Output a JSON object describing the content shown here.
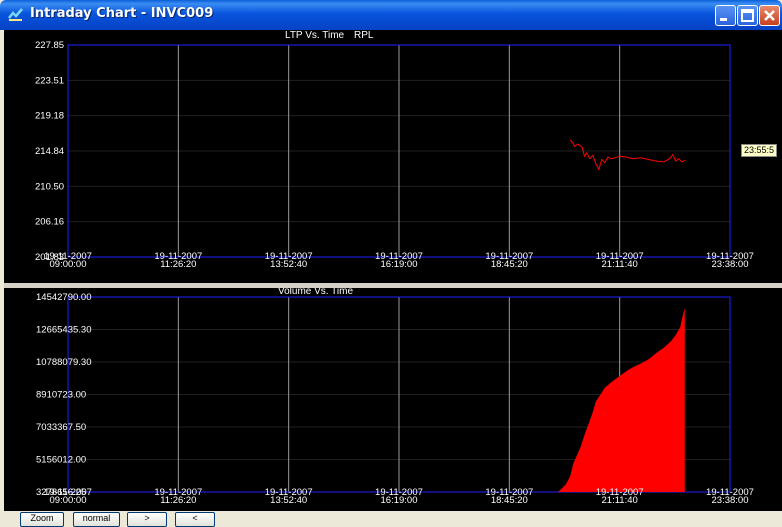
{
  "window": {
    "title": "Intraday Chart - INVC009",
    "buttons": [
      "minimize-icon",
      "maximize-icon",
      "close-icon"
    ]
  },
  "buttons": {
    "zoom": "Zoom",
    "normal": "normal",
    "next": ">",
    "prev": "<"
  },
  "cursor_time": "23:55:5",
  "chart_data": [
    {
      "type": "line",
      "title": "LTP Vs. Time",
      "symbol": "RPL",
      "color": "#ff0000",
      "yticks": [
        "227.85",
        "223.51",
        "219.18",
        "214.84",
        "210.50",
        "206.16",
        "201.83"
      ],
      "ylim": [
        201.83,
        227.85
      ],
      "xticks": [
        {
          "date": "19-11-2007",
          "time": "09:00:00"
        },
        {
          "date": "19-11-2007",
          "time": "11:26:20"
        },
        {
          "date": "19-11-2007",
          "time": "13:52:40"
        },
        {
          "date": "19-11-2007",
          "time": "16:19:00"
        },
        {
          "date": "19-11-2007",
          "time": "18:45:20"
        },
        {
          "date": "19-11-2007",
          "time": "21:11:40"
        },
        {
          "date": "19-11-2007",
          "time": "23:38:00"
        }
      ],
      "x": [
        "20:06",
        "20:09",
        "20:12",
        "20:16",
        "20:22",
        "20:25",
        "20:28",
        "20:32",
        "20:36",
        "20:40",
        "20:44",
        "20:48",
        "20:52",
        "20:56",
        "21:00",
        "21:05",
        "21:12",
        "21:20",
        "21:30",
        "21:40",
        "21:50",
        "22:00",
        "22:10",
        "22:18",
        "22:22",
        "22:26",
        "22:30",
        "22:34",
        "22:38"
      ],
      "values": [
        216.2,
        215.9,
        215.4,
        215.7,
        215.3,
        214.2,
        214.6,
        213.9,
        214.3,
        213.3,
        212.6,
        213.8,
        213.4,
        214.1,
        213.9,
        214.0,
        214.2,
        214.1,
        213.9,
        214.0,
        213.8,
        213.6,
        213.5,
        213.9,
        214.4,
        213.6,
        213.9,
        213.5,
        213.7
      ]
    },
    {
      "type": "area",
      "title": "Volume Vs. Time",
      "color": "#ff0000",
      "yticks": [
        "14542790.00",
        "12665435.30",
        "10788079.30",
        "8910723.00",
        "7033367.50",
        "5156012.00",
        "3278656.25"
      ],
      "ylim": [
        3278656.25,
        14542790.0
      ],
      "xticks": [
        {
          "date": "19-11-2007",
          "time": "09:00:00"
        },
        {
          "date": "19-11-2007",
          "time": "11:26:20"
        },
        {
          "date": "19-11-2007",
          "time": "13:52:40"
        },
        {
          "date": "19-11-2007",
          "time": "16:19:00"
        },
        {
          "date": "19-11-2007",
          "time": "18:45:20"
        },
        {
          "date": "19-11-2007",
          "time": "21:11:40"
        },
        {
          "date": "19-11-2007",
          "time": "23:38:00"
        }
      ],
      "x": [
        "19:50",
        "20:00",
        "20:06",
        "20:10",
        "20:16",
        "20:20",
        "20:26",
        "20:32",
        "20:36",
        "20:40",
        "20:46",
        "20:52",
        "21:00",
        "21:06",
        "21:14",
        "21:22",
        "21:30",
        "21:40",
        "21:50",
        "22:00",
        "22:10",
        "22:20",
        "22:26",
        "22:32",
        "22:36",
        "22:38"
      ],
      "values": [
        3278656,
        3700000,
        4200000,
        4900000,
        5500000,
        5900000,
        6700000,
        7400000,
        7900000,
        8500000,
        8900000,
        9300000,
        9600000,
        9800000,
        10050000,
        10300000,
        10500000,
        10700000,
        10950000,
        11300000,
        11600000,
        12000000,
        12350000,
        12800000,
        13600000,
        13900000
      ]
    }
  ]
}
